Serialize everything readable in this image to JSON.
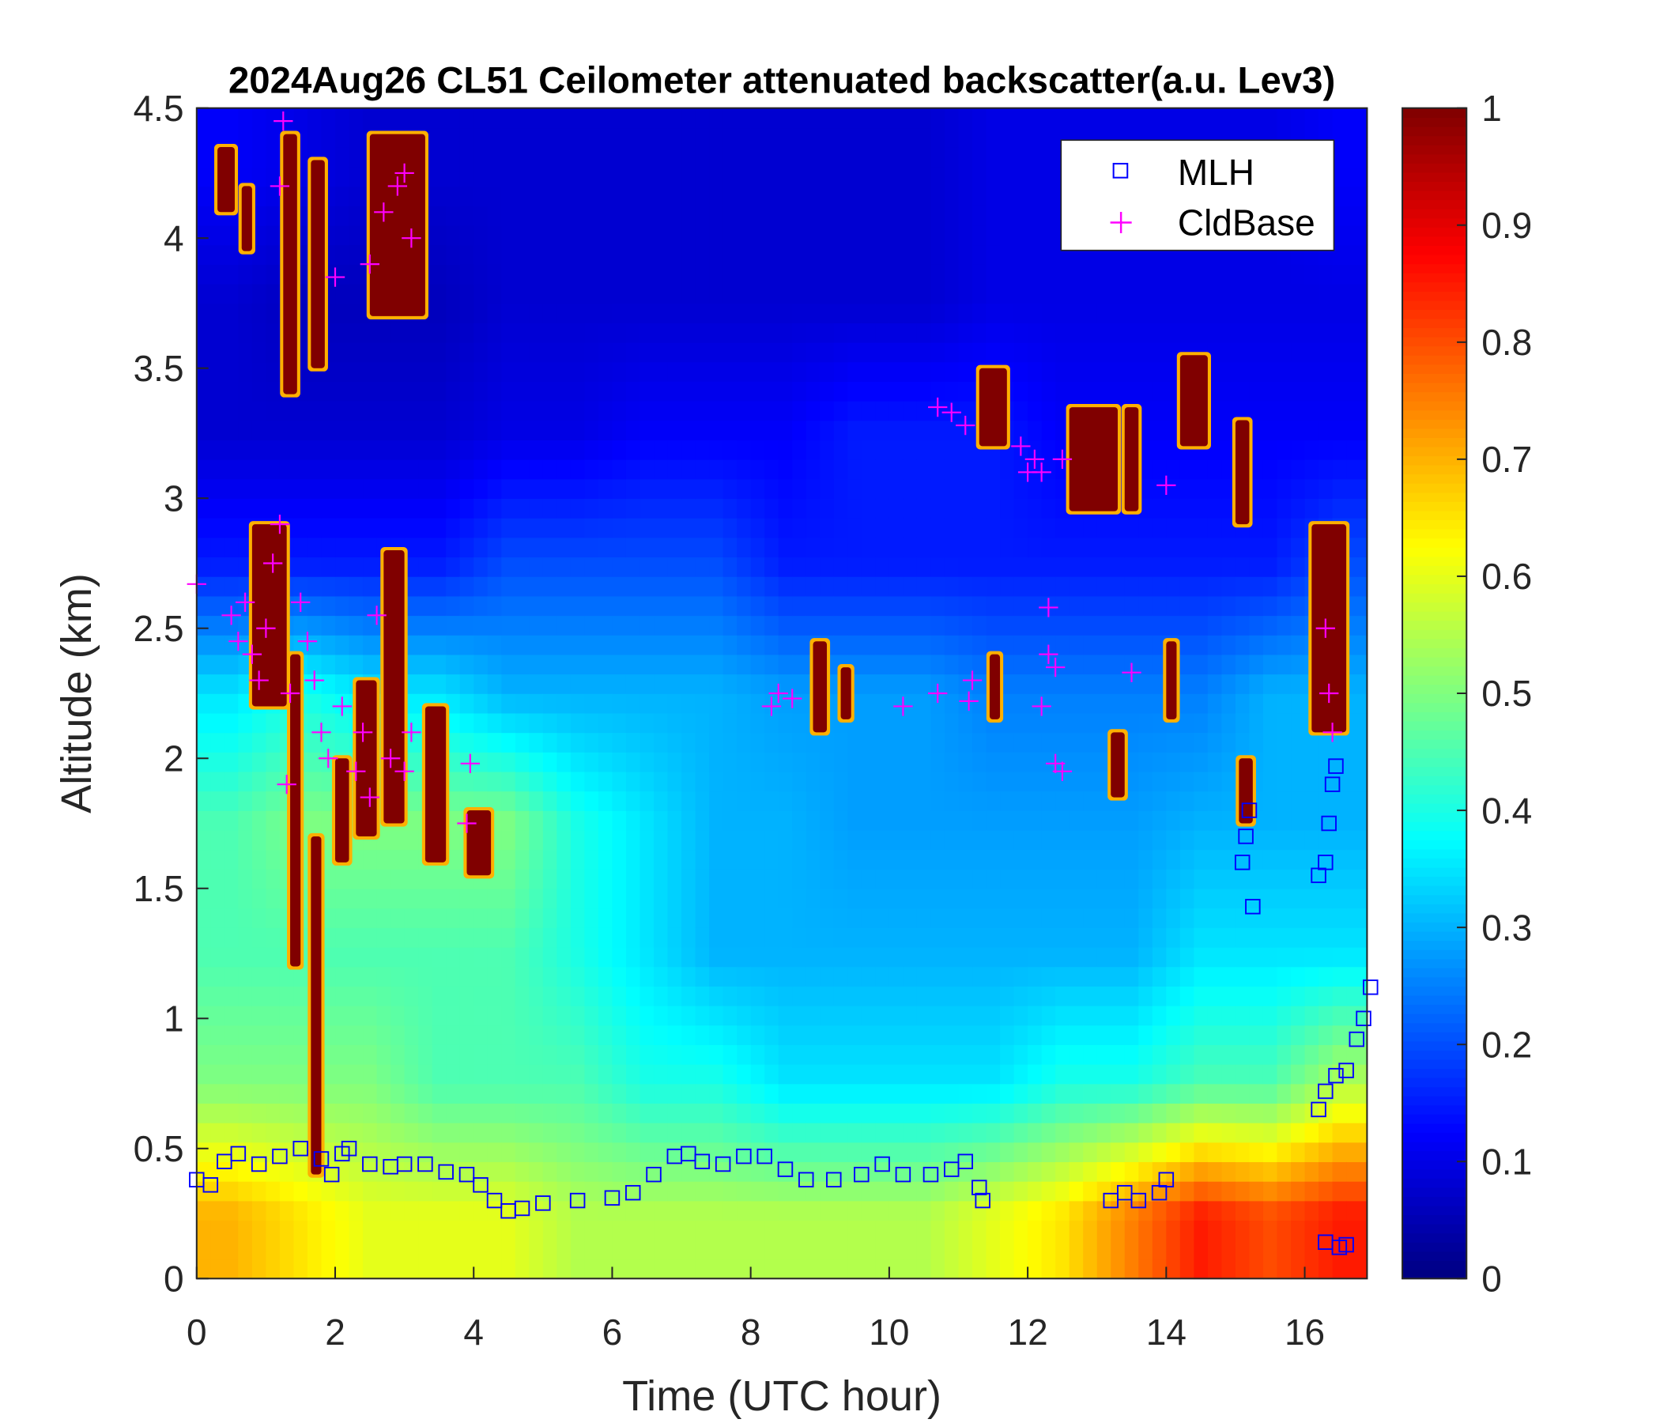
{
  "chart_data": {
    "type": "heatmap",
    "title": "2024Aug26 CL51 Ceilometer attenuated backscatter(a.u. Lev3)",
    "xlabel": "Time (UTC hour)",
    "ylabel": "Altitude (km)",
    "xlim": [
      0,
      16.9
    ],
    "ylim": [
      0,
      4.5
    ],
    "xticks": [
      "0",
      "2",
      "4",
      "6",
      "8",
      "10",
      "12",
      "14",
      "16"
    ],
    "yticks": [
      "0",
      "0.5",
      "1",
      "1.5",
      "2",
      "2.5",
      "3",
      "3.5",
      "4",
      "4.5"
    ],
    "colorbar": {
      "colormap": "jet",
      "range": [
        0,
        1
      ],
      "ticks": [
        "0",
        "0.1",
        "0.2",
        "0.3",
        "0.4",
        "0.5",
        "0.6",
        "0.7",
        "0.8",
        "0.9",
        "1"
      ]
    },
    "grid": false,
    "legend_placement": "top-right",
    "backscatter_grid": {
      "time_centers": [
        0.5,
        1.5,
        2.5,
        3.5,
        4.5,
        5.5,
        6.5,
        7.5,
        8.5,
        9.5,
        10.5,
        11.5,
        12.5,
        13.5,
        14.5,
        15.5,
        16.5
      ],
      "altitude_centers": [
        0.25,
        0.75,
        1.25,
        1.75,
        2.25,
        2.75,
        3.25,
        3.75,
        4.25
      ],
      "values": [
        [
          0.7,
          0.65,
          0.6,
          0.6,
          0.6,
          0.55,
          0.55,
          0.55,
          0.55,
          0.55,
          0.55,
          0.6,
          0.65,
          0.75,
          0.85,
          0.8,
          0.85
        ],
        [
          0.5,
          0.5,
          0.5,
          0.45,
          0.45,
          0.45,
          0.4,
          0.4,
          0.35,
          0.35,
          0.35,
          0.35,
          0.4,
          0.4,
          0.45,
          0.45,
          0.55
        ],
        [
          0.45,
          0.45,
          0.45,
          0.45,
          0.45,
          0.4,
          0.35,
          0.3,
          0.3,
          0.3,
          0.3,
          0.3,
          0.3,
          0.3,
          0.35,
          0.35,
          0.35
        ],
        [
          0.45,
          0.5,
          0.5,
          0.5,
          0.5,
          0.4,
          0.35,
          0.3,
          0.3,
          0.28,
          0.28,
          0.28,
          0.28,
          0.28,
          0.3,
          0.3,
          0.3
        ],
        [
          0.35,
          0.4,
          0.35,
          0.35,
          0.3,
          0.3,
          0.3,
          0.3,
          0.28,
          0.28,
          0.28,
          0.25,
          0.25,
          0.25,
          0.25,
          0.3,
          0.3
        ],
        [
          0.15,
          0.15,
          0.15,
          0.15,
          0.2,
          0.2,
          0.2,
          0.2,
          0.15,
          0.15,
          0.15,
          0.15,
          0.15,
          0.15,
          0.15,
          0.15,
          0.2
        ],
        [
          0.08,
          0.08,
          0.08,
          0.08,
          0.1,
          0.1,
          0.12,
          0.12,
          0.12,
          0.15,
          0.15,
          0.15,
          0.12,
          0.12,
          0.12,
          0.12,
          0.12
        ],
        [
          0.08,
          0.06,
          0.06,
          0.06,
          0.08,
          0.08,
          0.08,
          0.08,
          0.08,
          0.08,
          0.08,
          0.1,
          0.1,
          0.1,
          0.1,
          0.1,
          0.1
        ],
        [
          0.12,
          0.1,
          0.08,
          0.08,
          0.08,
          0.08,
          0.08,
          0.08,
          0.08,
          0.08,
          0.08,
          0.1,
          0.1,
          0.1,
          0.1,
          0.1,
          0.12
        ]
      ],
      "saturated_cloud_regions": [
        [
          0.3,
          0.55,
          4.1,
          4.35
        ],
        [
          0.65,
          0.8,
          3.95,
          4.2
        ],
        [
          1.25,
          1.45,
          3.4,
          4.4
        ],
        [
          1.65,
          1.85,
          3.5,
          4.3
        ],
        [
          1.35,
          1.5,
          1.2,
          2.4
        ],
        [
          1.65,
          1.8,
          0.4,
          1.7
        ],
        [
          2.0,
          2.2,
          1.6,
          2.0
        ],
        [
          2.3,
          2.6,
          1.7,
          2.3
        ],
        [
          2.7,
          3.0,
          1.75,
          2.8
        ],
        [
          3.3,
          3.6,
          1.6,
          2.2
        ],
        [
          3.9,
          4.25,
          1.55,
          1.8
        ],
        [
          0.8,
          1.3,
          2.2,
          2.9
        ],
        [
          2.5,
          3.3,
          3.7,
          4.4
        ],
        [
          8.9,
          9.1,
          2.1,
          2.45
        ],
        [
          9.3,
          9.45,
          2.15,
          2.35
        ],
        [
          11.45,
          11.6,
          2.15,
          2.4
        ],
        [
          11.3,
          11.7,
          3.2,
          3.5
        ],
        [
          12.6,
          13.3,
          2.95,
          3.35
        ],
        [
          13.4,
          13.6,
          2.95,
          3.35
        ],
        [
          14.2,
          14.6,
          3.2,
          3.55
        ],
        [
          15.0,
          15.2,
          2.9,
          3.3
        ],
        [
          14.0,
          14.15,
          2.15,
          2.45
        ],
        [
          13.2,
          13.4,
          1.85,
          2.1
        ],
        [
          16.1,
          16.6,
          2.1,
          2.9
        ],
        [
          15.05,
          15.25,
          1.75,
          2.0
        ]
      ]
    },
    "series": [
      {
        "name": "MLH",
        "marker": "square",
        "color": "#0000ff",
        "points": [
          [
            0,
            0.38
          ],
          [
            0.2,
            0.36
          ],
          [
            0.4,
            0.45
          ],
          [
            0.6,
            0.48
          ],
          [
            0.9,
            0.44
          ],
          [
            1.2,
            0.47
          ],
          [
            1.5,
            0.5
          ],
          [
            1.8,
            0.46
          ],
          [
            1.95,
            0.4
          ],
          [
            2.1,
            0.48
          ],
          [
            2.2,
            0.5
          ],
          [
            2.5,
            0.44
          ],
          [
            2.8,
            0.43
          ],
          [
            3.0,
            0.44
          ],
          [
            3.3,
            0.44
          ],
          [
            3.6,
            0.41
          ],
          [
            3.9,
            0.4
          ],
          [
            4.1,
            0.36
          ],
          [
            4.3,
            0.3
          ],
          [
            4.5,
            0.26
          ],
          [
            4.7,
            0.27
          ],
          [
            5.0,
            0.29
          ],
          [
            5.5,
            0.3
          ],
          [
            6.0,
            0.31
          ],
          [
            6.3,
            0.33
          ],
          [
            6.6,
            0.4
          ],
          [
            6.9,
            0.47
          ],
          [
            7.1,
            0.48
          ],
          [
            7.3,
            0.45
          ],
          [
            7.6,
            0.44
          ],
          [
            7.9,
            0.47
          ],
          [
            8.2,
            0.47
          ],
          [
            8.5,
            0.42
          ],
          [
            8.8,
            0.38
          ],
          [
            9.2,
            0.38
          ],
          [
            9.6,
            0.4
          ],
          [
            9.9,
            0.44
          ],
          [
            10.2,
            0.4
          ],
          [
            10.6,
            0.4
          ],
          [
            10.9,
            0.42
          ],
          [
            11.1,
            0.45
          ],
          [
            11.3,
            0.35
          ],
          [
            11.35,
            0.3
          ],
          [
            13.2,
            0.3
          ],
          [
            13.4,
            0.33
          ],
          [
            13.6,
            0.3
          ],
          [
            13.9,
            0.33
          ],
          [
            14.0,
            0.38
          ],
          [
            15.1,
            1.6
          ],
          [
            15.15,
            1.7
          ],
          [
            15.2,
            1.8
          ],
          [
            15.25,
            1.43
          ],
          [
            16.2,
            1.55
          ],
          [
            16.3,
            1.6
          ],
          [
            16.35,
            1.75
          ],
          [
            16.4,
            1.9
          ],
          [
            16.45,
            1.97
          ],
          [
            16.2,
            0.65
          ],
          [
            16.3,
            0.72
          ],
          [
            16.45,
            0.78
          ],
          [
            16.6,
            0.8
          ],
          [
            16.75,
            0.92
          ],
          [
            16.85,
            1.0
          ],
          [
            16.95,
            1.12
          ],
          [
            16.3,
            0.14
          ],
          [
            16.5,
            0.12
          ],
          [
            16.6,
            0.13
          ]
        ]
      },
      {
        "name": "CldBase",
        "marker": "plus",
        "color": "#ff00ff",
        "points": [
          [
            0.0,
            2.67
          ],
          [
            0.5,
            2.55
          ],
          [
            0.6,
            2.45
          ],
          [
            0.7,
            2.6
          ],
          [
            0.8,
            2.4
          ],
          [
            0.9,
            2.3
          ],
          [
            1.0,
            2.5
          ],
          [
            1.1,
            2.75
          ],
          [
            1.2,
            2.9
          ],
          [
            1.25,
            4.45
          ],
          [
            1.2,
            4.2
          ],
          [
            1.3,
            1.9
          ],
          [
            1.35,
            2.25
          ],
          [
            1.5,
            2.6
          ],
          [
            1.6,
            2.45
          ],
          [
            1.7,
            2.3
          ],
          [
            1.8,
            2.1
          ],
          [
            1.9,
            2.0
          ],
          [
            2.0,
            3.85
          ],
          [
            2.1,
            2.2
          ],
          [
            2.3,
            1.95
          ],
          [
            2.4,
            2.1
          ],
          [
            2.5,
            1.85
          ],
          [
            2.5,
            3.9
          ],
          [
            2.6,
            2.55
          ],
          [
            2.7,
            4.1
          ],
          [
            2.8,
            2.0
          ],
          [
            2.9,
            4.2
          ],
          [
            3.0,
            1.95
          ],
          [
            3.1,
            4.0
          ],
          [
            3.0,
            4.25
          ],
          [
            3.1,
            2.1
          ],
          [
            3.9,
            1.75
          ],
          [
            3.95,
            1.98
          ],
          [
            8.3,
            2.2
          ],
          [
            8.4,
            2.25
          ],
          [
            8.6,
            2.23
          ],
          [
            10.2,
            2.2
          ],
          [
            10.7,
            2.25
          ],
          [
            10.7,
            3.35
          ],
          [
            10.9,
            3.33
          ],
          [
            11.1,
            3.28
          ],
          [
            11.15,
            2.22
          ],
          [
            11.2,
            2.3
          ],
          [
            11.9,
            3.2
          ],
          [
            12.0,
            3.1
          ],
          [
            12.1,
            3.15
          ],
          [
            12.2,
            2.2
          ],
          [
            12.2,
            3.1
          ],
          [
            12.3,
            2.4
          ],
          [
            12.3,
            2.58
          ],
          [
            12.4,
            2.35
          ],
          [
            12.4,
            1.98
          ],
          [
            12.5,
            1.95
          ],
          [
            12.5,
            3.15
          ],
          [
            13.5,
            2.33
          ],
          [
            14.0,
            3.05
          ],
          [
            16.3,
            2.5
          ],
          [
            16.35,
            2.25
          ],
          [
            16.4,
            2.1
          ]
        ]
      }
    ]
  }
}
